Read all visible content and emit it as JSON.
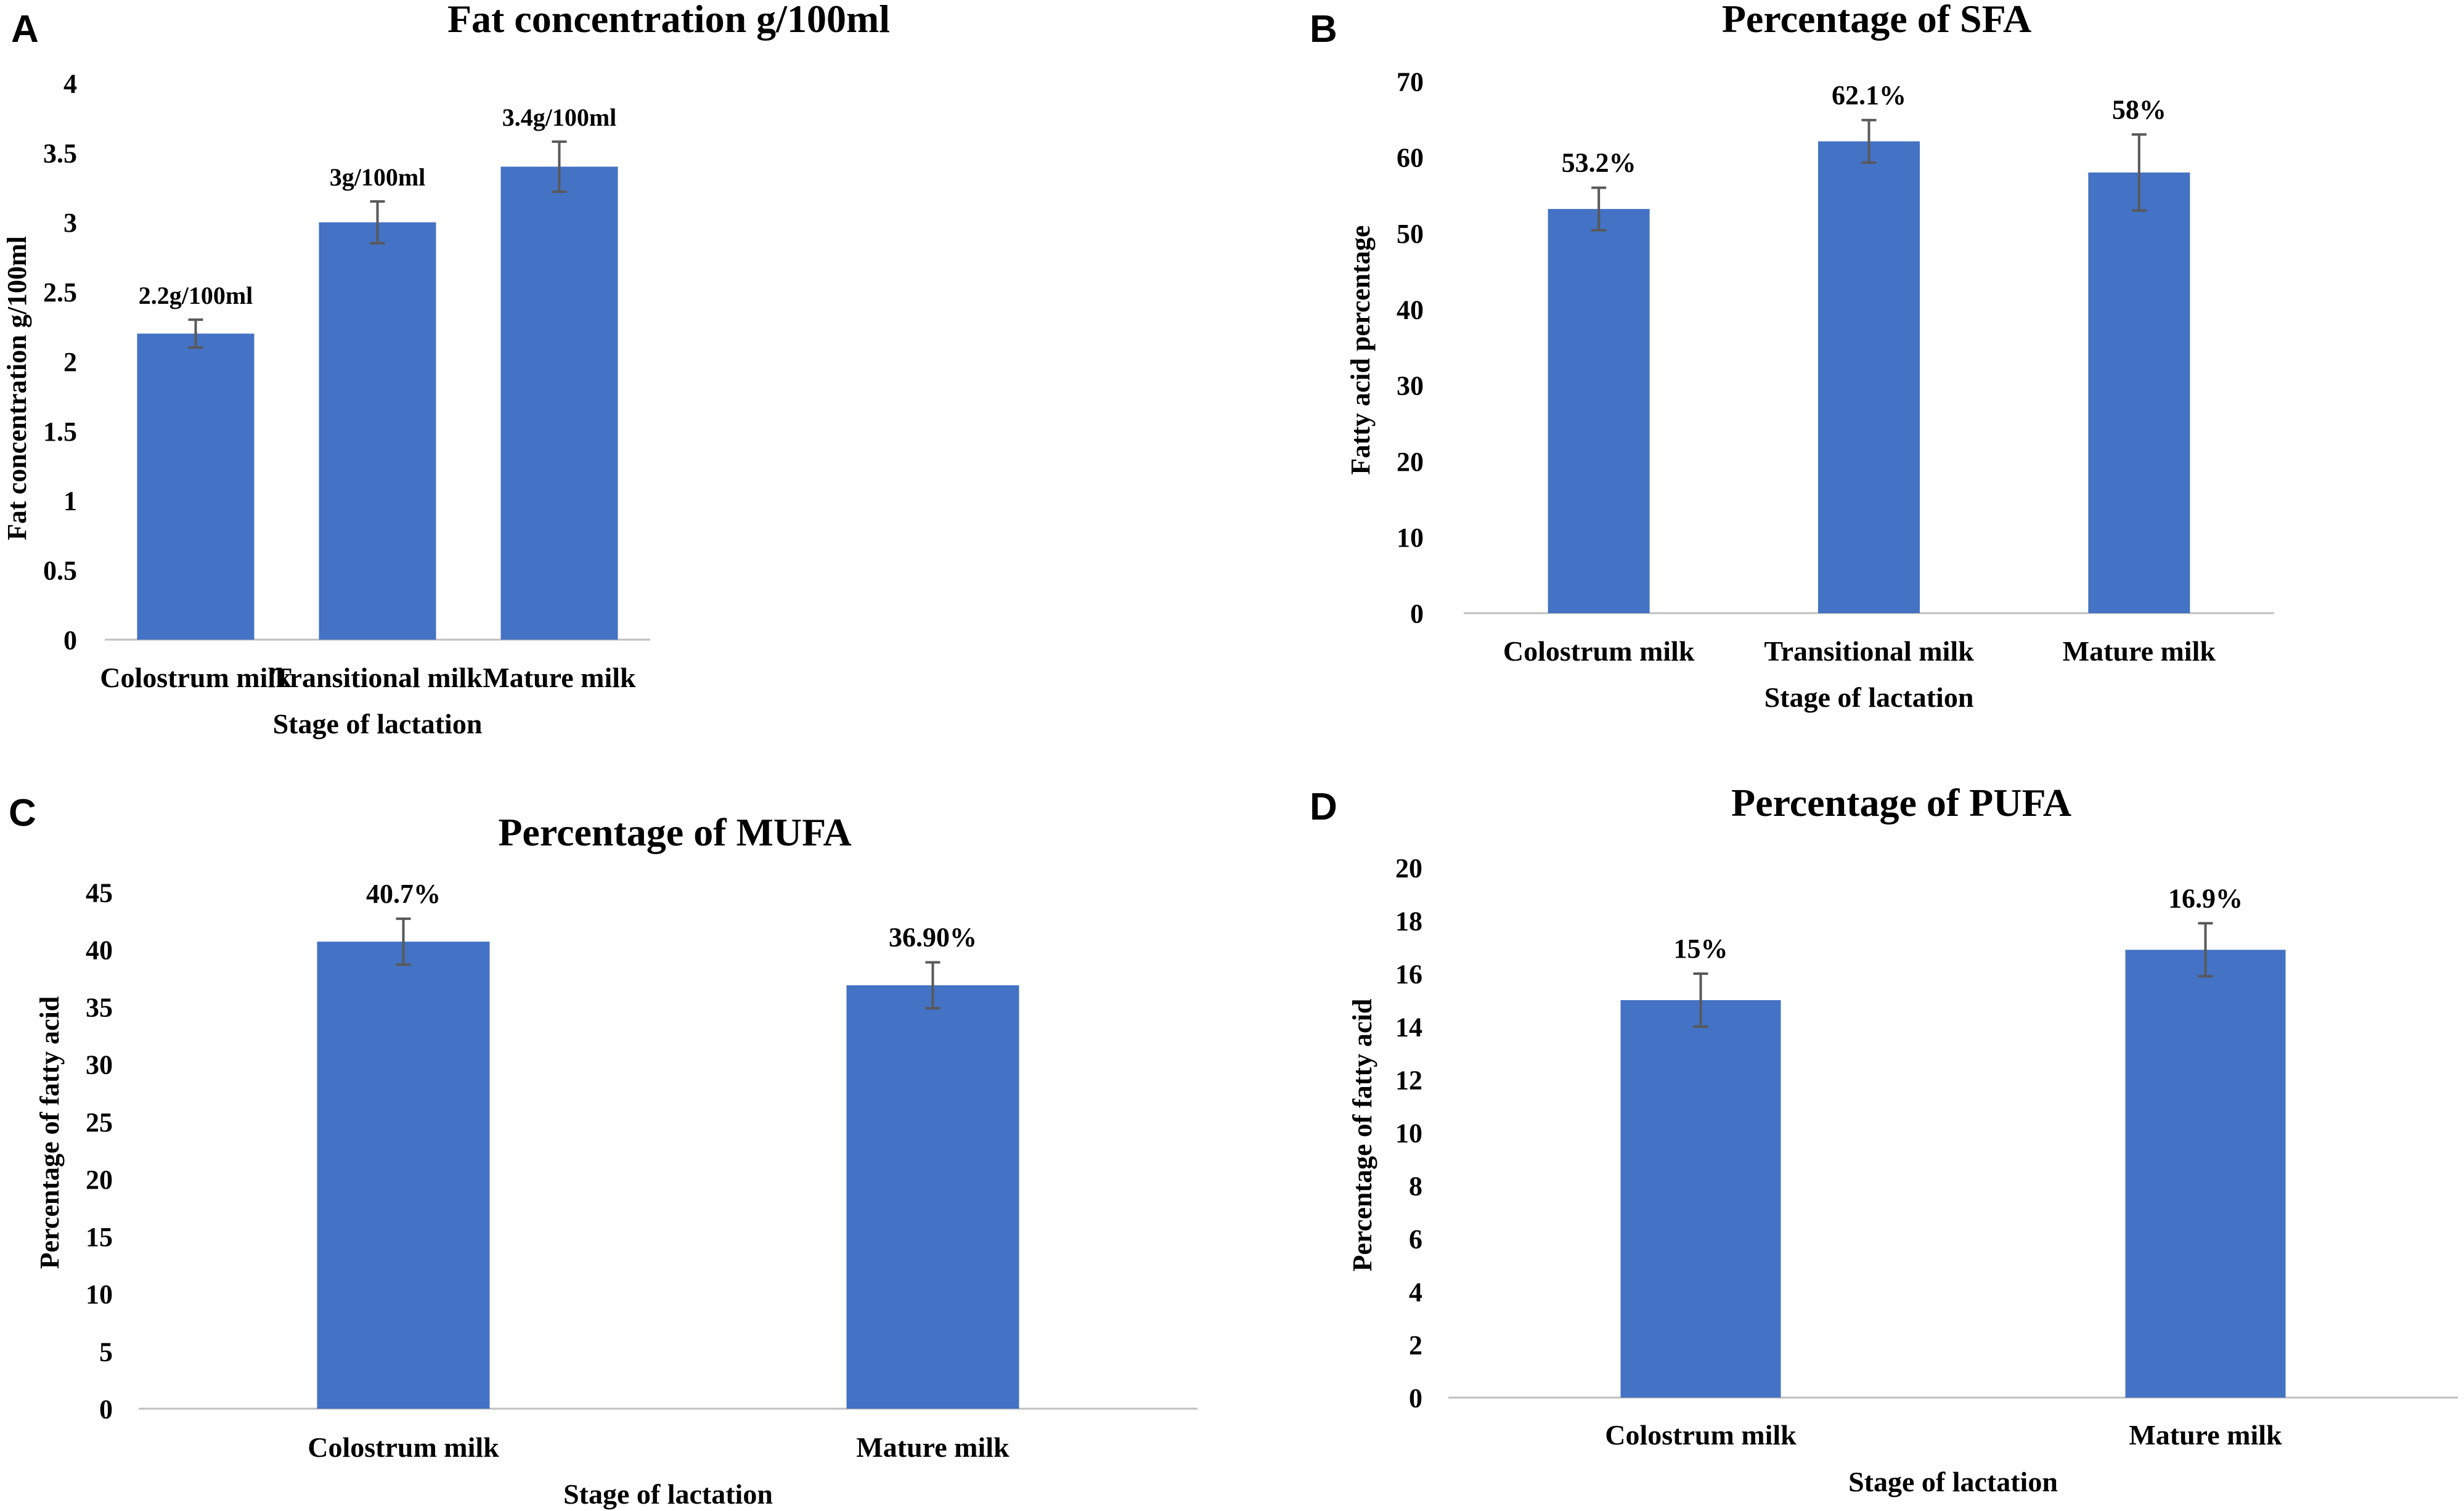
{
  "colors": {
    "bar": "#4472C4",
    "axis": "#BFBFBF",
    "error": "#595959",
    "text": "#000000"
  },
  "chart_data": [
    {
      "panel": "A",
      "type": "bar",
      "title": "Fat concentration g/100ml",
      "xlabel": "Stage of lactation",
      "ylabel": "Fat concentration g/100ml",
      "ylim": [
        0,
        4
      ],
      "yticks": [
        "0",
        "0.5",
        "1",
        "1.5",
        "2",
        "2.5",
        "3",
        "3.5",
        "4"
      ],
      "categories": [
        "Colostrum milk",
        "Transitional milk",
        "Mature milk"
      ],
      "values": [
        2.2,
        3,
        3.4
      ],
      "errors": [
        0.1,
        0.15,
        0.18
      ],
      "data_labels": [
        "2.2g/100ml",
        "3g/100ml",
        "3.4g/100ml"
      ],
      "grid": false
    },
    {
      "panel": "B",
      "type": "bar",
      "title": "Percentage of SFA",
      "xlabel": "Stage of lactation",
      "ylabel": "Fatty acid percentage",
      "ylim": [
        0,
        70
      ],
      "yticks": [
        "0",
        "10",
        "20",
        "30",
        "40",
        "50",
        "60",
        "70"
      ],
      "categories": [
        "Colostrum milk",
        "Transitional milk",
        "Mature milk"
      ],
      "values": [
        53.2,
        62.1,
        58
      ],
      "errors": [
        2.8,
        2.8,
        5
      ],
      "data_labels": [
        "53.2%",
        "62.1%",
        "58%"
      ],
      "grid": false
    },
    {
      "panel": "C",
      "type": "bar",
      "title": "Percentage of MUFA",
      "xlabel": "Stage of lactation",
      "ylabel": "Percentage of fatty acid",
      "ylim": [
        0,
        45
      ],
      "yticks": [
        "0",
        "5",
        "10",
        "15",
        "20",
        "25",
        "30",
        "35",
        "40",
        "45"
      ],
      "categories": [
        "Colostrum milk",
        "Mature milk"
      ],
      "values": [
        40.7,
        36.9
      ],
      "errors": [
        2,
        2
      ],
      "data_labels": [
        "40.7%",
        "36.90%"
      ],
      "grid": false
    },
    {
      "panel": "D",
      "type": "bar",
      "title": "Percentage of PUFA",
      "xlabel": "Stage of lactation",
      "ylabel": "Percentage of fatty acid",
      "ylim": [
        0,
        20
      ],
      "yticks": [
        "0",
        "2",
        "4",
        "6",
        "8",
        "10",
        "12",
        "14",
        "16",
        "18",
        "20"
      ],
      "categories": [
        "Colostrum milk",
        "Mature milk"
      ],
      "values": [
        15,
        16.9
      ],
      "errors": [
        1,
        1
      ],
      "data_labels": [
        "15%",
        "16.9%"
      ],
      "grid": false
    }
  ]
}
